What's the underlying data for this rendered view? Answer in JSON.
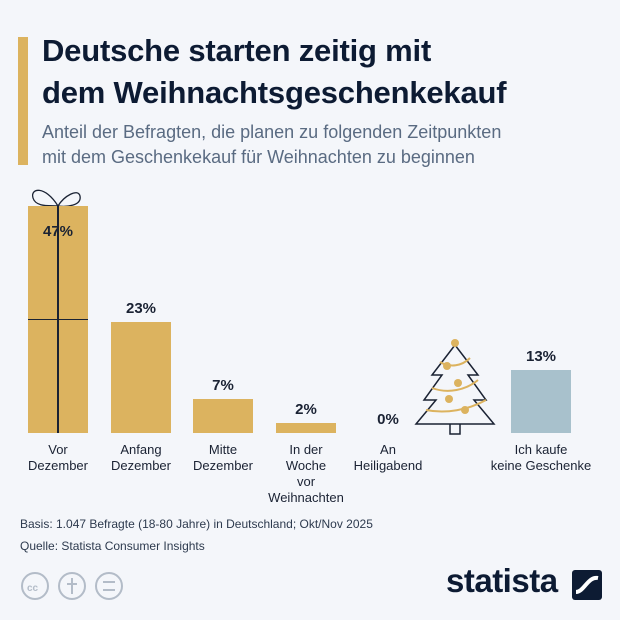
{
  "chart_data": {
    "type": "bar",
    "title": "Deutsche starten zeitig mit\ndem Weihnachtsgeschenkekauf",
    "subtitle": "Anteil der Befragten, die planen zu folgenden Zeitpunkten\nmit dem Geschenkekauf für Weihnachten zu beginnen",
    "categories": [
      "Vor\nDezember",
      "Anfang\nDezember",
      "Mitte\nDezember",
      "In der\nWoche\nvor\nWeihnachten",
      "An\nHeiligabend",
      "Ich kaufe\nkeine Geschenke"
    ],
    "values": [
      47,
      23,
      7,
      2,
      0,
      13
    ],
    "value_labels": [
      "47%",
      "23%",
      "7%",
      "2%",
      "0%",
      "13%"
    ],
    "colors": [
      "#dcb35f",
      "#dcb35f",
      "#dcb35f",
      "#dcb35f",
      "#dcb35f",
      "#a8c1cc"
    ],
    "notes": [
      "Basis: 1.047 Befragte (18-80 Jahre) in Deutschland; Okt/Nov 2025",
      "Quelle: Statista Consumer Insights"
    ],
    "brand": "statista"
  }
}
